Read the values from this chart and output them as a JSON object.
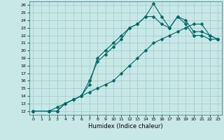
{
  "xlabel": "Humidex (Indice chaleur)",
  "ylabel": "",
  "xlim": [
    -0.5,
    23.5
  ],
  "ylim": [
    11.5,
    26.5
  ],
  "xticks": [
    0,
    1,
    2,
    3,
    4,
    5,
    6,
    7,
    8,
    9,
    10,
    11,
    12,
    13,
    14,
    15,
    16,
    17,
    18,
    19,
    20,
    21,
    22,
    23
  ],
  "yticks": [
    12,
    13,
    14,
    15,
    16,
    17,
    18,
    19,
    20,
    21,
    22,
    23,
    24,
    25,
    26
  ],
  "bg_color": "#c8e8e8",
  "grid_color": "#a0c8c8",
  "line_color": "#006868",
  "line1_x": [
    0,
    2,
    3,
    4,
    5,
    6,
    7,
    8,
    9,
    10,
    11,
    12,
    13,
    14,
    15,
    16,
    17,
    18,
    19,
    20,
    21,
    22,
    23
  ],
  "line1_y": [
    12,
    12,
    12.5,
    13,
    13.5,
    14,
    15.5,
    19,
    20,
    21,
    22,
    23,
    23.5,
    24.5,
    26.2,
    24.5,
    23,
    24.5,
    24,
    22.5,
    22.5,
    22,
    21.5
  ],
  "line2_x": [
    0,
    2,
    3,
    4,
    5,
    6,
    7,
    8,
    9,
    10,
    11,
    12,
    13,
    14,
    15,
    16,
    17,
    18,
    19,
    20,
    21,
    22,
    23
  ],
  "line2_y": [
    12,
    12,
    12,
    13,
    13.5,
    14,
    16,
    18.5,
    19.5,
    20.5,
    21.5,
    23,
    23.5,
    24.5,
    24.5,
    23.5,
    23,
    24.5,
    23.5,
    22,
    22,
    21.5,
    21.5
  ],
  "line3_x": [
    0,
    2,
    3,
    4,
    5,
    6,
    7,
    8,
    9,
    10,
    11,
    12,
    13,
    14,
    15,
    16,
    17,
    18,
    19,
    20,
    21,
    22,
    23
  ],
  "line3_y": [
    12,
    12,
    12,
    13,
    13.5,
    14,
    14.5,
    15,
    15.5,
    16,
    17,
    18,
    19,
    20,
    21,
    21.5,
    22,
    22.5,
    23,
    23.5,
    23.5,
    22,
    21.5
  ],
  "lw": 0.8,
  "ms": 2.5
}
